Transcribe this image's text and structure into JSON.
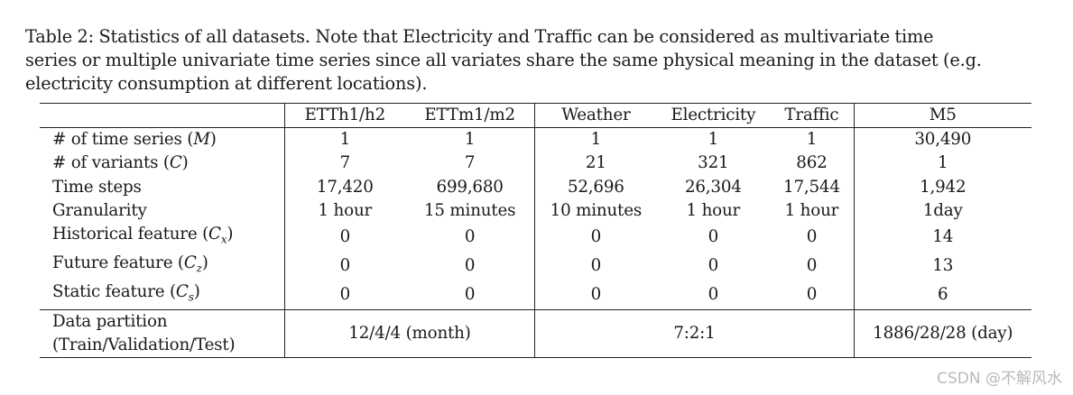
{
  "caption": {
    "line1": "Table 2: Statistics of all datasets. Note that Electricity and Traffic can be considered as multivariate time",
    "line2": "series or multiple univariate time series since all variates share the same physical meaning in the dataset (e.g.",
    "line3": "electricity consumption at different locations)."
  },
  "table": {
    "headers": [
      "ETTh1/h2",
      "ETTm1/m2",
      "Weather",
      "Electricity",
      "Traffic",
      "M5"
    ],
    "rows": [
      {
        "label_pre": "# of time series (",
        "label_var": "M",
        "label_sub": "",
        "label_post": ")",
        "cells": [
          "1",
          "1",
          "1",
          "1",
          "1",
          "30,490"
        ]
      },
      {
        "label_pre": "# of variants (",
        "label_var": "C",
        "label_sub": "",
        "label_post": ")",
        "cells": [
          "7",
          "7",
          "21",
          "321",
          "862",
          "1"
        ]
      },
      {
        "label_pre": "Time steps",
        "label_var": "",
        "label_sub": "",
        "label_post": "",
        "cells": [
          "17,420",
          "699,680",
          "52,696",
          "26,304",
          "17,544",
          "1,942"
        ]
      },
      {
        "label_pre": "Granularity",
        "label_var": "",
        "label_sub": "",
        "label_post": "",
        "cells": [
          "1 hour",
          "15 minutes",
          "10 minutes",
          "1 hour",
          "1 hour",
          "1day"
        ]
      },
      {
        "label_pre": "Historical feature (",
        "label_var": "C",
        "label_sub": "x",
        "label_post": ")",
        "cells": [
          "0",
          "0",
          "0",
          "0",
          "0",
          "14"
        ]
      },
      {
        "label_pre": "Future feature (",
        "label_var": "C",
        "label_sub": "z",
        "label_post": ")",
        "cells": [
          "0",
          "0",
          "0",
          "0",
          "0",
          "13"
        ]
      },
      {
        "label_pre": "Static feature (",
        "label_var": "C",
        "label_sub": "s",
        "label_post": ")",
        "cells": [
          "0",
          "0",
          "0",
          "0",
          "0",
          "6"
        ]
      }
    ],
    "footer": {
      "label_line1": "Data partition",
      "label_line2": "(Train/Validation/Test)",
      "ett": "12/4/4 (month)",
      "mid": "7:2:1",
      "m5": "1886/28/28 (day)"
    }
  },
  "watermark": "CSDN @不解风水"
}
